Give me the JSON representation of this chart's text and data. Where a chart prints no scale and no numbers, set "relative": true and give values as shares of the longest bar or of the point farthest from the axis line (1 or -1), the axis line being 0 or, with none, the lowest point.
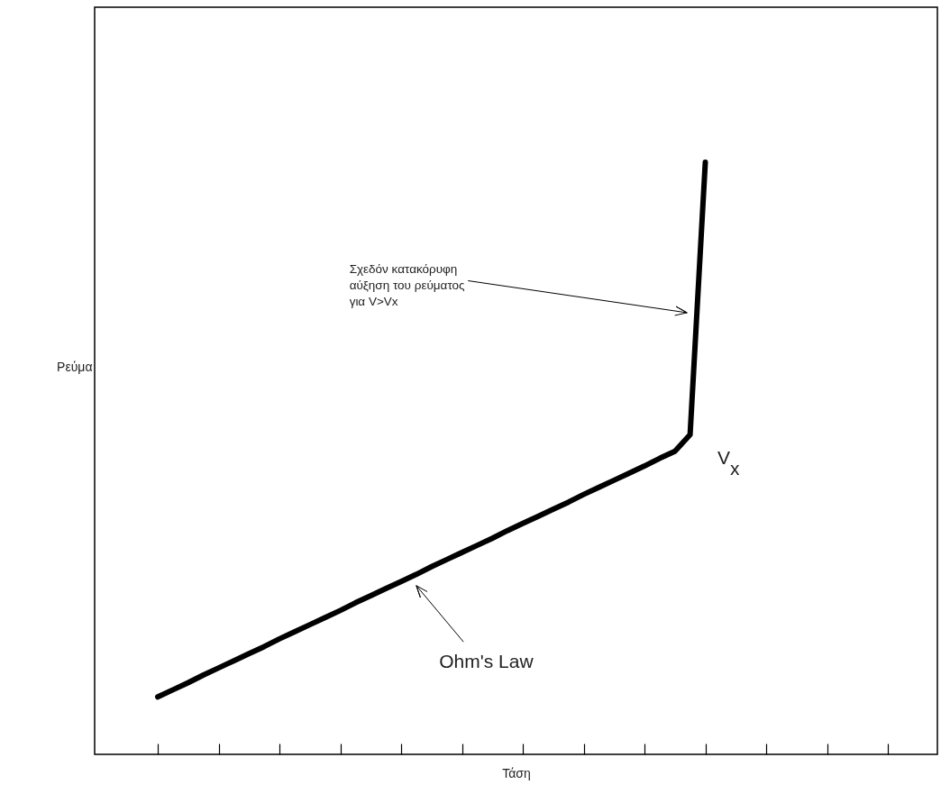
{
  "chart_data": {
    "type": "line",
    "relative": true,
    "xlabel": "Τάση",
    "ylabel": "Ρεύμα",
    "categories": [
      null,
      null,
      null,
      null,
      null,
      null,
      null,
      null,
      null,
      null,
      null,
      null,
      null,
      null,
      null,
      null,
      null,
      null,
      null,
      null,
      null,
      null,
      null,
      null,
      null,
      null,
      null,
      null,
      null,
      null,
      null,
      null,
      null,
      null,
      null,
      null,
      null,
      null,
      null,
      null,
      null,
      null,
      null,
      null,
      null,
      null,
      null,
      null,
      null
    ],
    "series": [
      {
        "color": "#000000",
        "values": [
          0.097,
          0.109,
          0.121,
          0.134,
          0.146,
          0.158,
          0.17,
          0.182,
          0.195,
          0.207,
          0.219,
          0.231,
          0.243,
          0.256,
          0.268,
          0.28,
          0.292,
          0.304,
          0.317,
          0.329,
          0.341,
          0.353,
          0.365,
          0.378,
          0.39,
          0.402,
          0.414,
          0.426,
          0.439,
          0.451,
          0.463,
          0.475,
          0.487,
          0.5,
          0.512,
          0.54,
          1.0,
          null,
          null,
          null,
          null,
          null,
          null,
          null,
          null,
          null,
          null,
          null,
          null
        ]
      }
    ],
    "annotations": [
      "Σχεδόν κατακόρυφη\nαύξηση του ρεύματος\nγια V>Vx",
      "Ohm's Law",
      "V$_{x}$"
    ]
  }
}
